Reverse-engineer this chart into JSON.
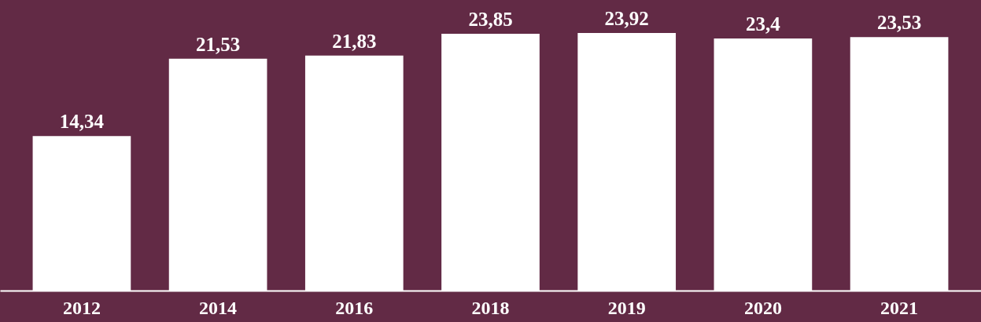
{
  "chart_data": {
    "type": "bar",
    "categories": [
      "2012",
      "2014",
      "2016",
      "2018",
      "2019",
      "2020",
      "2021"
    ],
    "values": [
      14.34,
      21.53,
      21.83,
      23.85,
      23.92,
      23.4,
      23.53
    ],
    "value_labels": [
      "14,34",
      "21,53",
      "21,83",
      "23,85",
      "23,92",
      "23,4",
      "23,53"
    ],
    "color": "#ffffff",
    "grid": false
  }
}
